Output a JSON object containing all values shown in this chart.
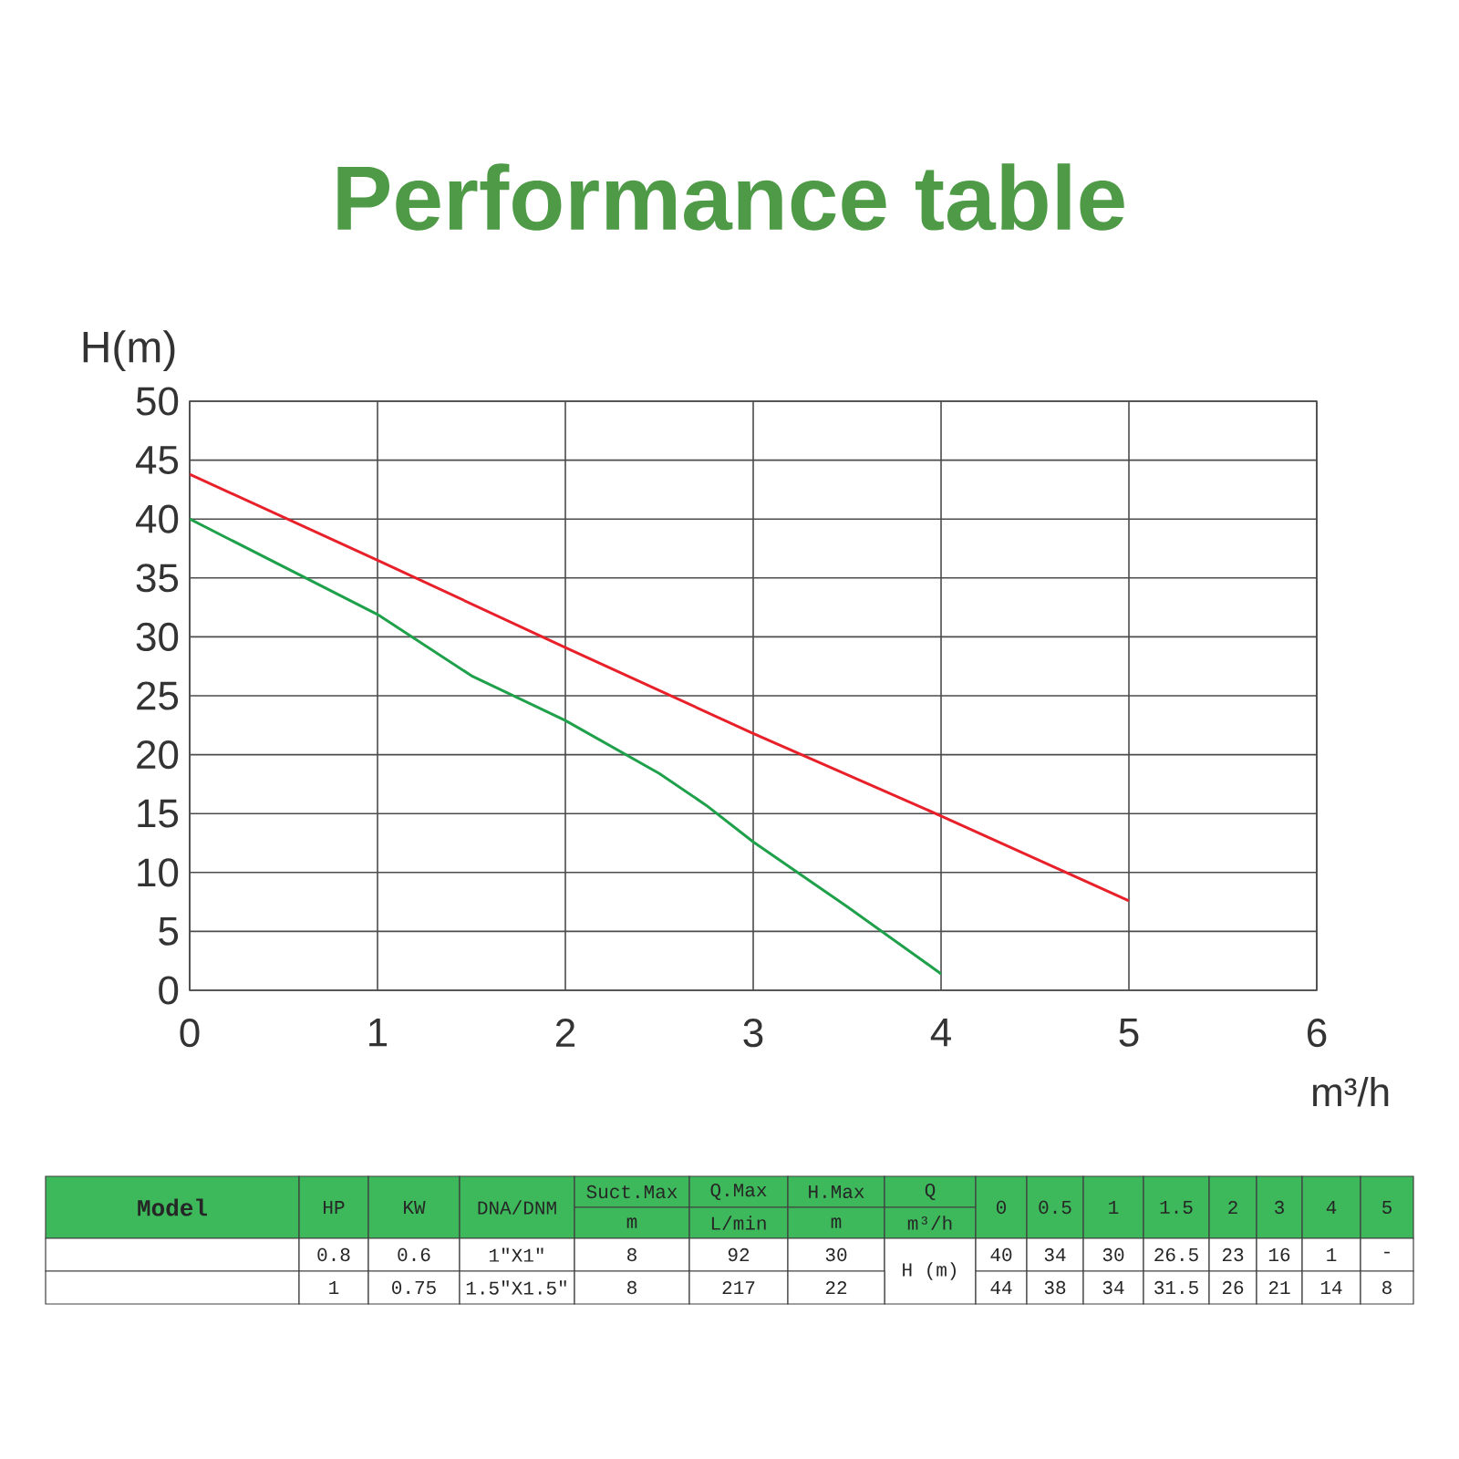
{
  "chart_data": {
    "type": "line",
    "title": "Performance table",
    "xlabel": "m³/h",
    "ylabel": "H(m)",
    "xlim": [
      0,
      6
    ],
    "xticks": [
      0,
      1,
      2,
      3,
      4,
      5,
      6
    ],
    "ylim": [
      0,
      50
    ],
    "yticks": [
      0,
      5,
      10,
      15,
      20,
      25,
      30,
      35,
      40,
      45,
      50
    ],
    "grid": true,
    "marker": "none",
    "line_style": "solid",
    "series": [
      {
        "color": "#1fa04a",
        "x": [
          0,
          1,
          1.5,
          2,
          2.5,
          2.75,
          3,
          3.5,
          4
        ],
        "values": [
          40,
          31.9,
          26.7,
          22.9,
          18.4,
          15.7,
          12.6,
          7.1,
          1.4
        ]
      },
      {
        "color": "#e8202a",
        "x": [
          0,
          1,
          2,
          3,
          4,
          5
        ],
        "values": [
          43.8,
          36.5,
          29.1,
          21.8,
          14.8,
          7.6
        ]
      }
    ],
    "annotations": [
      "Model",
      "HP",
      "KW",
      "DNA/DNM",
      "Suct.Max",
      "m",
      "Q.Max",
      "L/min",
      "H.Max",
      "m",
      "Q",
      "m³/h",
      "0",
      "0.5",
      "1",
      "1.5",
      "2",
      "3",
      "4",
      "5",
      "0.8",
      "0.6",
      "1″X1″",
      "8",
      "92",
      "30",
      "H (m)",
      "40",
      "34",
      "30",
      "26.5",
      "23",
      "16",
      "1",
      "-",
      "1",
      "0.75",
      "1.5″X1.5″",
      "8",
      "217",
      "22",
      "44",
      "38",
      "34",
      "31.5",
      "26",
      "21",
      "14",
      "8"
    ]
  }
}
